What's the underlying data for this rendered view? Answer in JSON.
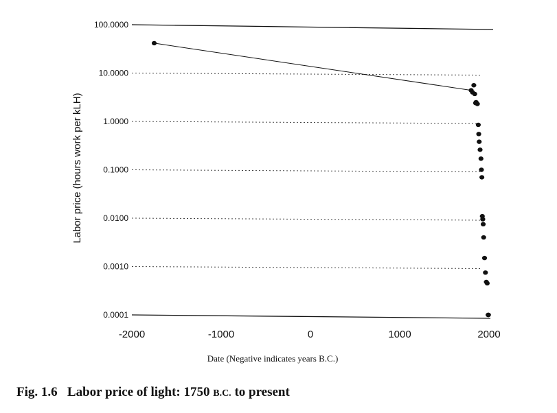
{
  "chart_data": {
    "type": "scatter",
    "y_scale": "log",
    "ylabel": "Labor price (hours work per kLH)",
    "xlabel": "Date (Negative indicates years B.C.)",
    "xlim": [
      -2000,
      2000
    ],
    "ylim": [
      0.0001,
      100
    ],
    "x_ticks": [
      "-2000",
      "-1000",
      "0",
      "1000",
      "2000"
    ],
    "x_tick_values": [
      -2000,
      -1000,
      0,
      1000,
      2000
    ],
    "y_ticks": [
      "100.0000",
      "10.0000",
      "1.0000",
      "0.1000",
      "0.0100",
      "0.0010",
      "0.0001"
    ],
    "y_tick_values": [
      100,
      10,
      1,
      0.1,
      0.01,
      0.001,
      0.0001
    ],
    "grid": "dotted horizontal",
    "trend_line": {
      "x": [
        -1750,
        1800
      ],
      "y": [
        41.5,
        4.4
      ]
    },
    "series": [
      {
        "x": [
          -1750,
          1800,
          1815,
          1830,
          1840,
          1850,
          1855,
          1860,
          1870,
          1880,
          1885,
          1890,
          1900,
          1910,
          1915,
          1920,
          1925,
          1930,
          1935,
          1940,
          1950,
          1960,
          1970,
          1980,
          1990,
          1992,
          1994
        ],
        "y": [
          41.5,
          4.4,
          4.0,
          5.6,
          3.7,
          2.4,
          2.5,
          2.4,
          2.3,
          0.85,
          0.55,
          0.38,
          0.26,
          0.17,
          0.1,
          0.07,
          0.011,
          0.0095,
          0.0075,
          0.004,
          0.0015,
          0.00075,
          0.00048,
          0.00045,
          0.0001,
          0.0001,
          0.0001
        ]
      }
    ]
  },
  "caption": {
    "fig_label": "Fig. 1.6",
    "text_before": "Labor price of light: 1750 ",
    "bc": "B.C.",
    "text_after": " to present"
  }
}
